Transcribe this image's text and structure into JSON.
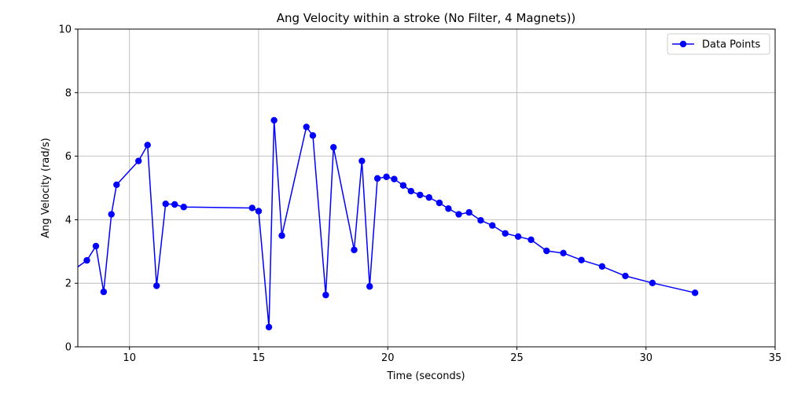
{
  "chart_data": {
    "type": "line",
    "title": "Ang Velocity within a stroke (No Filter, 4 Magnets))",
    "xlabel": "Time (seconds)",
    "ylabel": "Ang Velocity (rad/s)",
    "xlim": [
      8,
      35
    ],
    "ylim": [
      0,
      10
    ],
    "xticks": [
      10,
      15,
      20,
      25,
      30,
      35
    ],
    "yticks": [
      0,
      2,
      4,
      6,
      8,
      10
    ],
    "grid": true,
    "legend_position": "upper-right",
    "series": [
      {
        "name": "Data Points",
        "color": "#0000ff",
        "marker": "circle",
        "x": [
          7.8,
          8.35,
          8.7,
          9.0,
          9.3,
          9.5,
          10.35,
          10.7,
          11.05,
          11.4,
          11.75,
          12.1,
          14.75,
          15.0,
          15.4,
          15.6,
          15.9,
          16.85,
          17.1,
          17.6,
          17.9,
          18.7,
          19.0,
          19.3,
          19.6,
          19.95,
          20.25,
          20.6,
          20.9,
          21.25,
          21.6,
          22.0,
          22.35,
          22.75,
          23.15,
          23.6,
          24.05,
          24.55,
          25.05,
          25.55,
          26.15,
          26.8,
          27.5,
          28.3,
          29.2,
          30.25,
          31.9
        ],
        "y": [
          2.4,
          2.72,
          3.17,
          1.73,
          4.17,
          5.1,
          5.85,
          6.35,
          1.92,
          4.5,
          4.48,
          4.4,
          4.37,
          4.27,
          0.62,
          7.13,
          3.5,
          6.92,
          6.65,
          1.63,
          6.28,
          3.05,
          5.85,
          1.9,
          5.3,
          5.35,
          5.28,
          5.08,
          4.9,
          4.78,
          4.7,
          4.53,
          4.35,
          4.17,
          4.23,
          3.98,
          3.82,
          3.57,
          3.47,
          3.37,
          3.02,
          2.95,
          2.73,
          2.53,
          2.23,
          2.01,
          1.7
        ]
      }
    ]
  }
}
